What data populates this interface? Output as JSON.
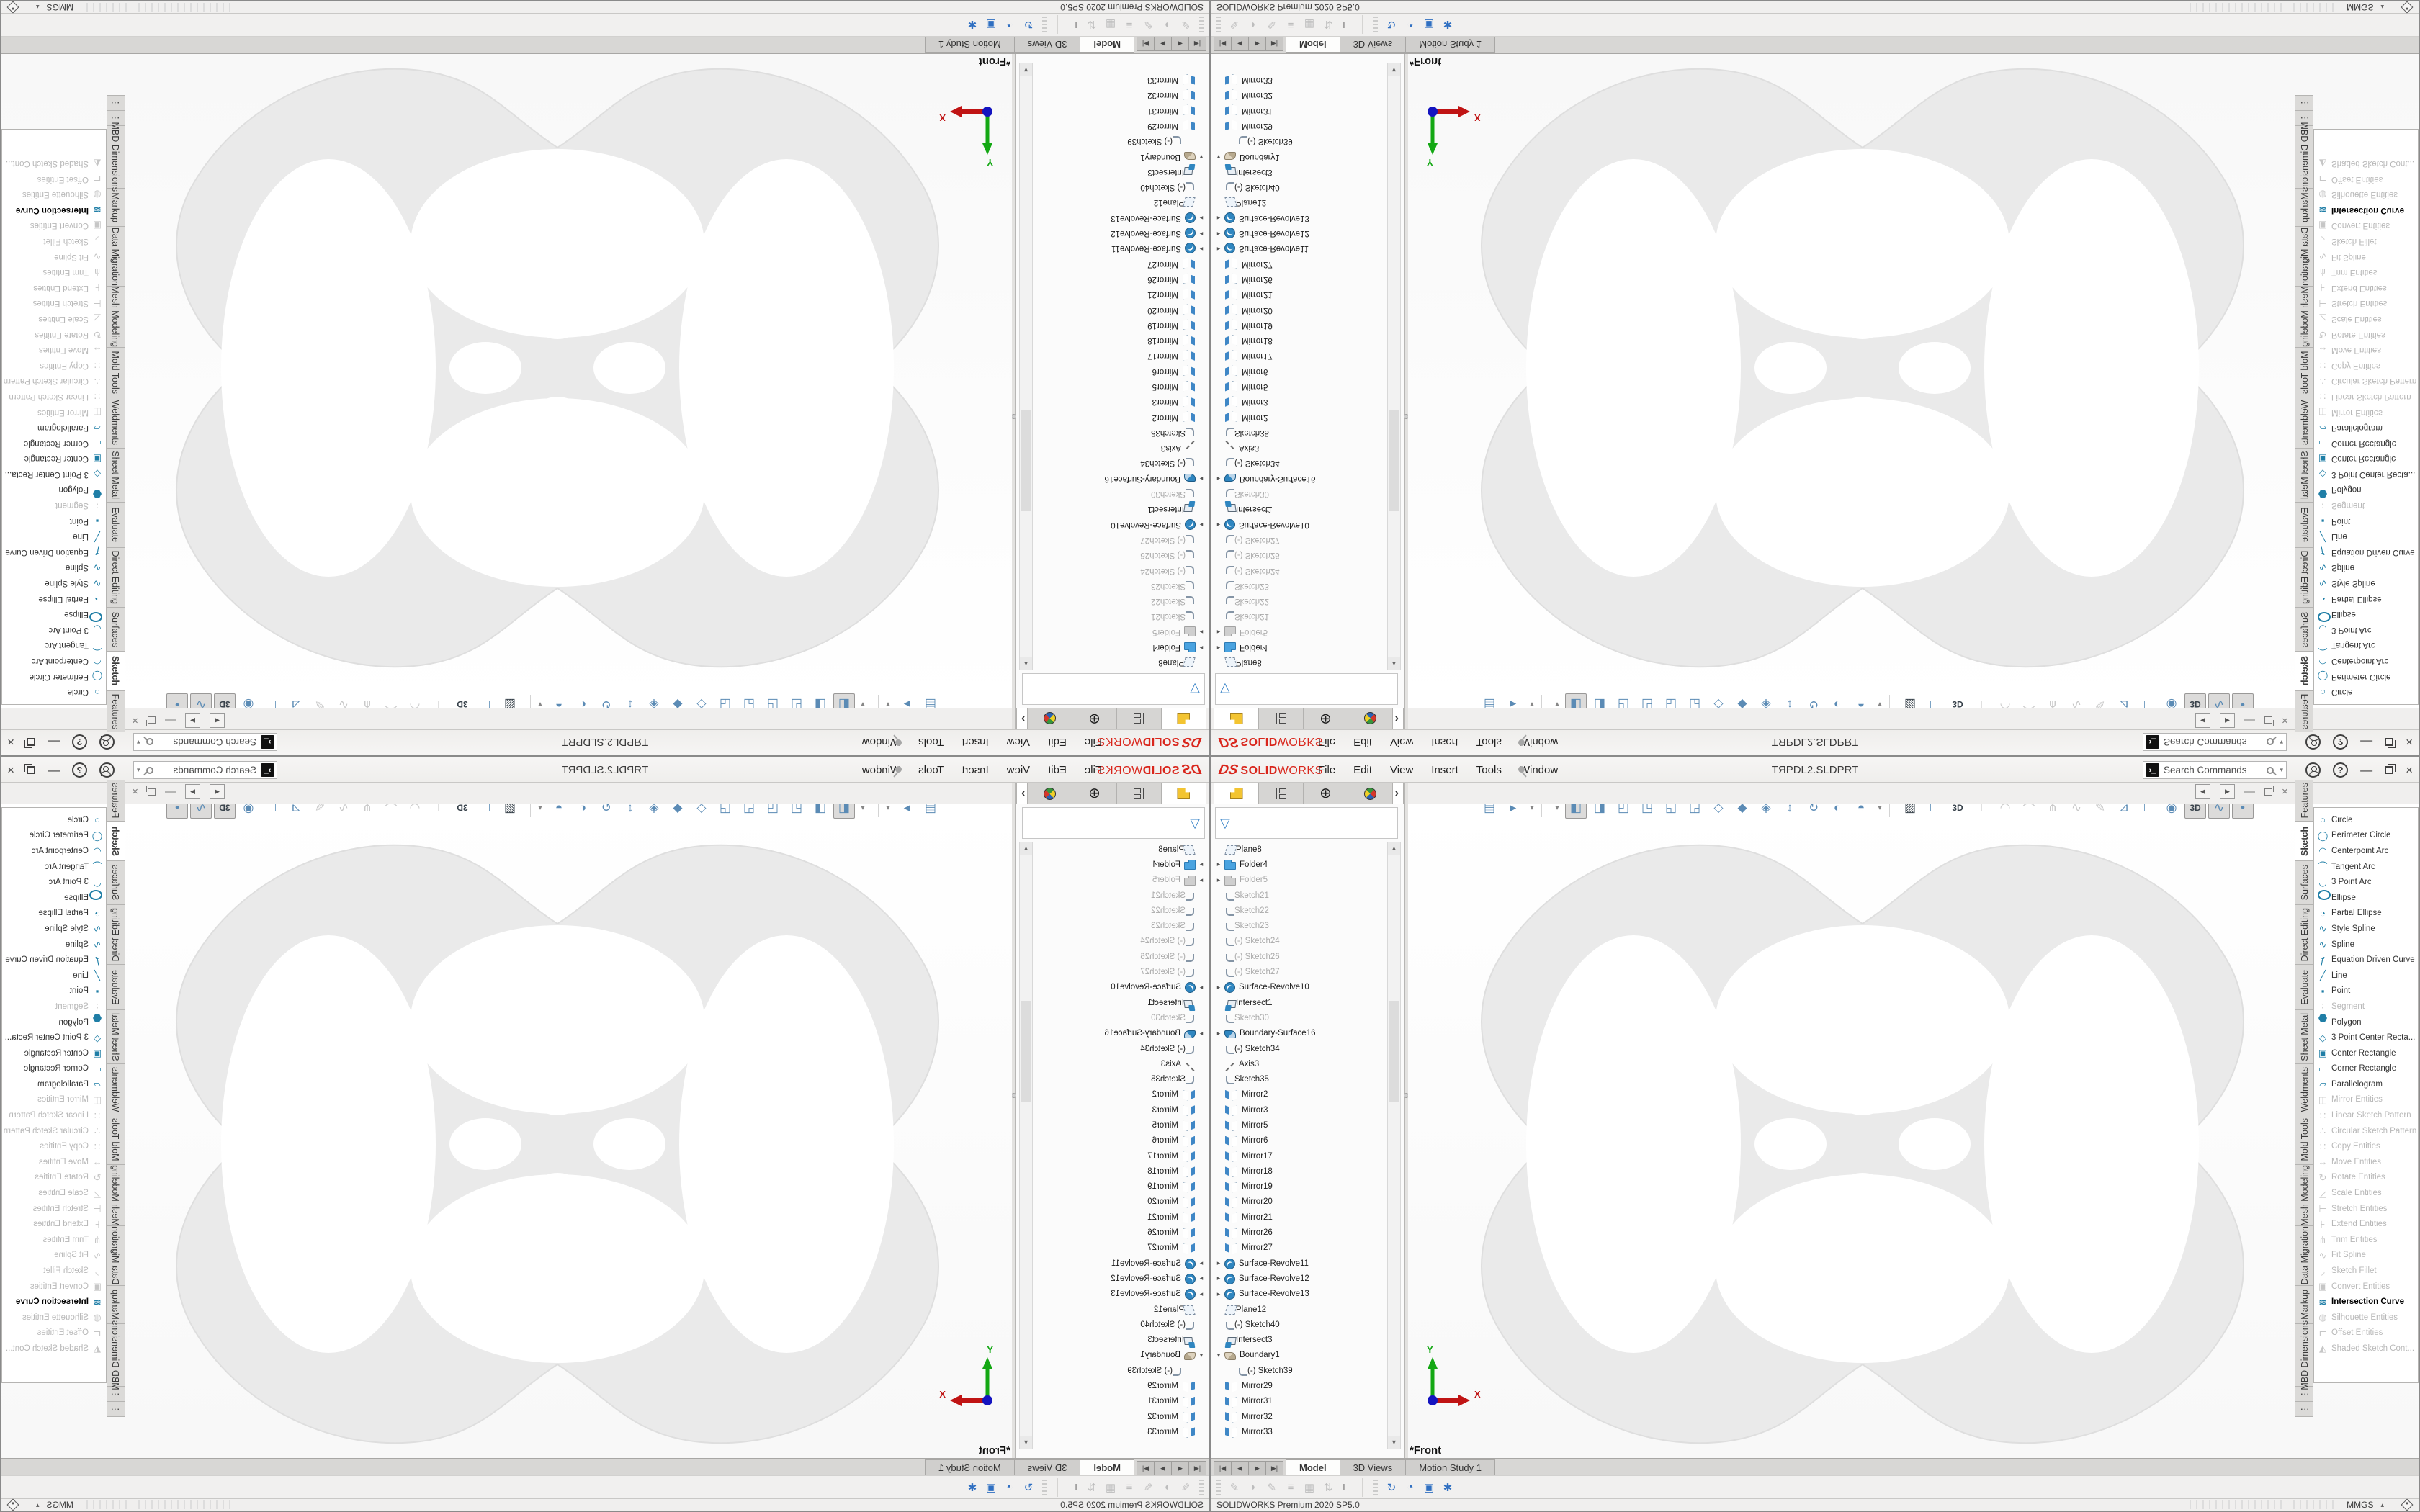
{
  "window": {
    "logo_ds": "DS",
    "logo_solid": "SOLID",
    "logo_works": "WORKS",
    "menus": [
      {
        "label": "File"
      },
      {
        "label": "Edit"
      },
      {
        "label": "View"
      },
      {
        "label": "Insert"
      },
      {
        "label": "Tools"
      },
      {
        "label": "Window"
      }
    ],
    "title": "TЯPDL2.SLDPRT",
    "search_placeholder": "Search Commands",
    "status_left": "SOLIDWORKS Premium 2020 SP5.0",
    "units": "MMGS"
  },
  "feature_manager": {
    "expand_glyph": "›",
    "tree": [
      {
        "label": "Plane8",
        "icon": "plane"
      },
      {
        "label": "Folder4",
        "icon": "folder",
        "arrow": "r"
      },
      {
        "label": "Folder5",
        "icon": "folder-gray",
        "arrow": "r",
        "state": "disabled"
      },
      {
        "label": "Sketch21",
        "icon": "sketch",
        "state": "disabled"
      },
      {
        "label": "Sketch22",
        "icon": "sketch",
        "state": "disabled"
      },
      {
        "label": "Sketch23",
        "icon": "sketch",
        "state": "disabled"
      },
      {
        "label": "(-) Sketch24",
        "icon": "sketch",
        "state": "disabled"
      },
      {
        "label": "(-) Sketch26",
        "icon": "sketch",
        "state": "disabled"
      },
      {
        "label": "(-) Sketch27",
        "icon": "sketch",
        "state": "disabled"
      },
      {
        "label": "Surface-Revolve10",
        "icon": "surface-revolve",
        "arrow": "r"
      },
      {
        "label": "Intersect1",
        "icon": "intersect"
      },
      {
        "label": "Sketch30",
        "icon": "sketch",
        "state": "disabled"
      },
      {
        "label": "Boundary-Surface16",
        "icon": "boundary-surface",
        "arrow": "r"
      },
      {
        "label": "(-) Sketch34",
        "icon": "sketch"
      },
      {
        "label": "Axis3",
        "icon": "axis"
      },
      {
        "label": "Sketch35",
        "icon": "sketch"
      },
      {
        "label": "Mirror2",
        "icon": "mirror"
      },
      {
        "label": "Mirror3",
        "icon": "mirror"
      },
      {
        "label": "Mirror5",
        "icon": "mirror"
      },
      {
        "label": "Mirror6",
        "icon": "mirror"
      },
      {
        "label": "Mirror17",
        "icon": "mirror"
      },
      {
        "label": "Mirror18",
        "icon": "mirror"
      },
      {
        "label": "Mirror19",
        "icon": "mirror"
      },
      {
        "label": "Mirror20",
        "icon": "mirror"
      },
      {
        "label": "Mirror21",
        "icon": "mirror"
      },
      {
        "label": "Mirror26",
        "icon": "mirror"
      },
      {
        "label": "Mirror27",
        "icon": "mirror"
      },
      {
        "label": "Surface-Revolve11",
        "icon": "surface-revolve",
        "arrow": "r"
      },
      {
        "label": "Surface-Revolve12",
        "icon": "surface-revolve",
        "arrow": "r"
      },
      {
        "label": "Surface-Revolve13",
        "icon": "surface-revolve",
        "arrow": "r"
      },
      {
        "label": "Plane12",
        "icon": "plane"
      },
      {
        "label": "(-) Sketch40",
        "icon": "sketch"
      },
      {
        "label": "Intersect3",
        "icon": "intersect"
      },
      {
        "label": "Boundary1",
        "icon": "boundary",
        "arrow": "d"
      },
      {
        "label": "(-) Sketch39",
        "icon": "sketch",
        "indent": 1
      },
      {
        "label": "Mirror29",
        "icon": "mirror"
      },
      {
        "label": "Mirror31",
        "icon": "mirror"
      },
      {
        "label": "Mirror32",
        "icon": "mirror"
      },
      {
        "label": "Mirror33",
        "icon": "mirror"
      }
    ]
  },
  "headsup": [
    {
      "name": "save-icon",
      "icon": "save"
    },
    {
      "name": "run-macro-icon",
      "icon": "macro-run"
    },
    {
      "name": "dropdown-caret-icon",
      "icon": "caret-down",
      "cls": "small"
    },
    {
      "sep": true
    },
    {
      "name": "dropdown-caret-icon",
      "icon": "caret-down",
      "cls": "small"
    },
    {
      "name": "view-front-icon",
      "icon": "view-front",
      "state": "pressed"
    },
    {
      "name": "view-back-icon",
      "icon": "view-back"
    },
    {
      "name": "view-left-icon",
      "icon": "view-left"
    },
    {
      "name": "view-right-icon",
      "icon": "view-right"
    },
    {
      "name": "view-top-icon",
      "icon": "view-top"
    },
    {
      "name": "view-bottom-icon",
      "icon": "view-bottom"
    },
    {
      "name": "view-isometric-icon",
      "icon": "view-iso"
    },
    {
      "name": "view-dimetric-icon",
      "icon": "view-dimetric"
    },
    {
      "name": "view-trimetric-icon",
      "icon": "view-trimetric"
    },
    {
      "name": "normal-to-icon",
      "icon": "normal-to"
    },
    {
      "name": "refresh-view-icon",
      "icon": "view-refresh"
    },
    {
      "name": "section-view-icon",
      "icon": "section-view"
    },
    {
      "name": "display-style-icon",
      "icon": "display-style"
    },
    {
      "name": "dropdown-caret-icon",
      "icon": "caret-down",
      "cls": "small"
    },
    {
      "sep": true
    },
    {
      "name": "zebra-stripes-icon",
      "icon": "zebra",
      "cls": "dark"
    },
    {
      "name": "sketch-corner-icon",
      "icon": "sketch-corner"
    },
    {
      "name": "sketch-3d-icon",
      "icon": "sketch-3d",
      "cls": "txt"
    },
    {
      "name": "plane-normal-icon",
      "icon": "plane-normal",
      "state": "disabled"
    },
    {
      "name": "curve-tool-icon",
      "icon": "curve-tool",
      "state": "disabled"
    },
    {
      "name": "arc-tool-icon",
      "icon": "arc-tool",
      "state": "disabled"
    },
    {
      "name": "trim-tool-icon",
      "icon": "trim-tool",
      "state": "disabled"
    },
    {
      "name": "spline-tool-icon",
      "icon": "spline-tool",
      "state": "disabled"
    },
    {
      "name": "pencil-tool-icon",
      "icon": "pencil-tool",
      "state": "disabled"
    },
    {
      "name": "instant-2d-icon",
      "icon": "instant-2d"
    },
    {
      "name": "ruler-eye-icon",
      "icon": "ruler"
    },
    {
      "name": "hide-show-icon",
      "icon": "hide-show"
    },
    {
      "name": "instant-3d-icon",
      "icon": "instant-3d",
      "cls": "txt",
      "state": "pressed"
    },
    {
      "name": "curves-visibility-icon",
      "icon": "curves-vis",
      "state": "pressed"
    },
    {
      "name": "points-visibility-icon",
      "icon": "points-vis",
      "state": "pressed"
    }
  ],
  "viewport": {
    "view_label": "*Front",
    "triad_x": "X",
    "triad_y": "Y"
  },
  "command_manager": {
    "tabs": [
      {
        "label": "Features",
        "h": 58
      },
      {
        "label": "Sketch",
        "h": 56,
        "state": "active"
      },
      {
        "label": "Surfaces",
        "h": 62
      },
      {
        "label": "Direct Editing",
        "h": 84
      },
      {
        "label": "Evaluate",
        "h": 64
      },
      {
        "label": "Sheet Metal",
        "h": 76
      },
      {
        "label": "Weldments",
        "h": 72
      },
      {
        "label": "Mold Tools",
        "h": 70
      },
      {
        "label": "Mesh Modeling",
        "h": 86
      },
      {
        "label": "Data Migration",
        "h": 84
      },
      {
        "label": "Markup",
        "h": 54
      },
      {
        "label": "MBD Dimensions",
        "h": 88
      },
      {
        "label": "⋮",
        "h": 22
      },
      {
        "label": "⋮",
        "h": 22
      }
    ],
    "menu": [
      {
        "label": "Circle",
        "icon": "circle"
      },
      {
        "label": "Perimeter Circle",
        "icon": "perimeter-circle"
      },
      {
        "label": "Centerpoint Arc",
        "icon": "centerpoint-arc"
      },
      {
        "label": "Tangent Arc",
        "icon": "tangent-arc"
      },
      {
        "label": "3 Point Arc",
        "icon": "three-point-arc"
      },
      {
        "label": "Ellipse",
        "icon": "ellipse"
      },
      {
        "label": "Partial Ellipse",
        "icon": "partial-ellipse"
      },
      {
        "label": "Style Spline",
        "icon": "style-spline"
      },
      {
        "label": "Spline",
        "icon": "spline"
      },
      {
        "label": "Equation Driven Curve",
        "icon": "equation-curve"
      },
      {
        "label": "Line",
        "icon": "line"
      },
      {
        "label": "Point",
        "icon": "point"
      },
      {
        "label": "Segment",
        "icon": "segment",
        "state": "disabled"
      },
      {
        "label": "Polygon",
        "icon": "polygon"
      },
      {
        "label": "3 Point Center Recta...",
        "icon": "three-point-rect"
      },
      {
        "label": "Center Rectangle",
        "icon": "center-rect"
      },
      {
        "label": "Corner Rectangle",
        "icon": "corner-rect"
      },
      {
        "label": "Parallelogram",
        "icon": "parallelogram"
      },
      {
        "label": "Mirror Entities",
        "icon": "mirror-entities",
        "state": "disabled"
      },
      {
        "label": "Linear Sketch Pattern",
        "icon": "linear-pattern",
        "state": "disabled"
      },
      {
        "label": "Circular Sketch Pattern",
        "icon": "circular-pattern",
        "state": "disabled"
      },
      {
        "label": "Copy Entities",
        "icon": "copy-entities",
        "state": "disabled"
      },
      {
        "label": "Move Entities",
        "icon": "move-entities",
        "state": "disabled"
      },
      {
        "label": "Rotate Entities",
        "icon": "rotate-entities",
        "state": "disabled"
      },
      {
        "label": "Scale Entities",
        "icon": "scale-entities",
        "state": "disabled"
      },
      {
        "label": "Stretch Entities",
        "icon": "stretch-entities",
        "state": "disabled"
      },
      {
        "label": "Extend Entities",
        "icon": "extend-entities",
        "state": "disabled"
      },
      {
        "label": "Trim Entities",
        "icon": "trim-entities",
        "state": "disabled"
      },
      {
        "label": "Fit Spline",
        "icon": "fit-spline",
        "state": "disabled"
      },
      {
        "label": "Sketch Fillet",
        "icon": "sketch-fillet",
        "state": "disabled"
      },
      {
        "label": "Convert Entities",
        "icon": "convert-entities",
        "state": "disabled"
      },
      {
        "label": "Intersection Curve",
        "icon": "intersection-curve",
        "state": "strong"
      },
      {
        "label": "Silhouette Entities",
        "icon": "silhouette",
        "state": "disabled"
      },
      {
        "label": "Offset Entities",
        "icon": "offset-entities",
        "state": "disabled"
      },
      {
        "label": "Shaded Sketch Cont...",
        "icon": "shaded-contour",
        "state": "disabled"
      }
    ]
  },
  "doc_tabs": {
    "scroll": [
      {
        "name": "tab-first-icon",
        "icon": "tab-first"
      },
      {
        "name": "tab-prev-icon",
        "icon": "tab-prev"
      },
      {
        "name": "tab-next-icon",
        "icon": "tab-next"
      },
      {
        "name": "tab-last-icon",
        "icon": "tab-last"
      }
    ],
    "tabs": [
      {
        "label": "Model",
        "state": "active"
      },
      {
        "label": "3D Views"
      },
      {
        "label": "Motion Study 1"
      }
    ]
  },
  "bottom_toolbar": {
    "group1": [
      {
        "name": "markup-pen-icon",
        "icon": "markup-pen"
      },
      {
        "name": "markup-eraser-icon",
        "icon": "markup-erase"
      },
      {
        "name": "pencil-icon",
        "icon": "pencil"
      },
      {
        "name": "lines-icon",
        "icon": "lines"
      },
      {
        "name": "grid-icon",
        "icon": "grid"
      },
      {
        "name": "flip-icon",
        "icon": "flip"
      },
      {
        "name": "scale-ruler-icon",
        "icon": "scale-ruler",
        "cls": "colorful"
      }
    ],
    "group2": [
      {
        "name": "doc-refresh-icon",
        "icon": "doc-refresh",
        "cls": "blue"
      },
      {
        "name": "doc-time-icon",
        "icon": "doc-time",
        "cls": "blue"
      },
      {
        "name": "folder-gear-icon",
        "icon": "doc-folder",
        "cls": "blue"
      },
      {
        "name": "settings-gear-icon",
        "icon": "gear",
        "cls": "blue"
      }
    ]
  },
  "icon_glyphs": {
    "save": "▤",
    "macro-run": "▸",
    "caret-down": "▾",
    "view-front": "◧",
    "view-back": "◨",
    "view-left": "◰",
    "view-right": "◳",
    "view-top": "◱",
    "view-bottom": "◲",
    "view-iso": "◇",
    "view-dimetric": "◆",
    "view-trimetric": "◈",
    "normal-to": "↕",
    "view-refresh": "↻",
    "section-view": "◐",
    "display-style": "◓",
    "zebra": "▨",
    "sketch-corner": "∟",
    "sketch-3d": "3D",
    "plane-normal": "⊥",
    "curve-tool": "◠",
    "arc-tool": "⌒",
    "trim-tool": "⋔",
    "spline-tool": "∿",
    "pencil-tool": "✎",
    "instant-2d": "⊿",
    "ruler": "∟",
    "hide-show": "◉",
    "instant-3d": "3D",
    "curves-vis": "∿",
    "points-vis": "•",
    "circle": "○",
    "perimeter-circle": "◯",
    "centerpoint-arc": "◠",
    "tangent-arc": "⌒",
    "three-point-arc": "◡",
    "ellipse": "",
    "partial-ellipse": "◔",
    "style-spline": "∿",
    "spline": "∿",
    "equation-curve": "ƒ",
    "line": "╱",
    "point": "▪",
    "segment": "∶",
    "polygon": "",
    "three-point-rect": "◇",
    "center-rect": "▣",
    "corner-rect": "▭",
    "parallelogram": "▱",
    "mirror-entities": "◫",
    "linear-pattern": "∷",
    "circular-pattern": "∴",
    "copy-entities": "∷",
    "move-entities": "↔",
    "rotate-entities": "↻",
    "scale-entities": "◿",
    "stretch-entities": "⊢",
    "extend-entities": "⊦",
    "trim-entities": "⋔",
    "fit-spline": "∿",
    "sketch-fillet": "◞",
    "convert-entities": "▣",
    "intersection-curve": "≋",
    "silhouette": "◍",
    "offset-entities": "⊏",
    "shaded-contour": "◭",
    "tab-first": "|◀",
    "tab-prev": "◀",
    "tab-next": "▶",
    "tab-last": "▶|",
    "doc-prev": "◀",
    "doc-next": "▶",
    "markup-pen": "✎",
    "markup-erase": "◗",
    "pencil": "✎",
    "lines": "≡",
    "grid": "▦",
    "flip": "⇅",
    "scale-ruler": "∟",
    "doc-refresh": "↻",
    "doc-time": "◔",
    "doc-folder": "▣",
    "gear": "✱",
    "scroll-up": "▲",
    "scroll-down": "▼",
    "unit-caret": "▴",
    "search-prompt": "›_",
    "help": "?",
    "minimize": "—",
    "close": "×",
    "expand": "›",
    "funnel": "▽"
  }
}
